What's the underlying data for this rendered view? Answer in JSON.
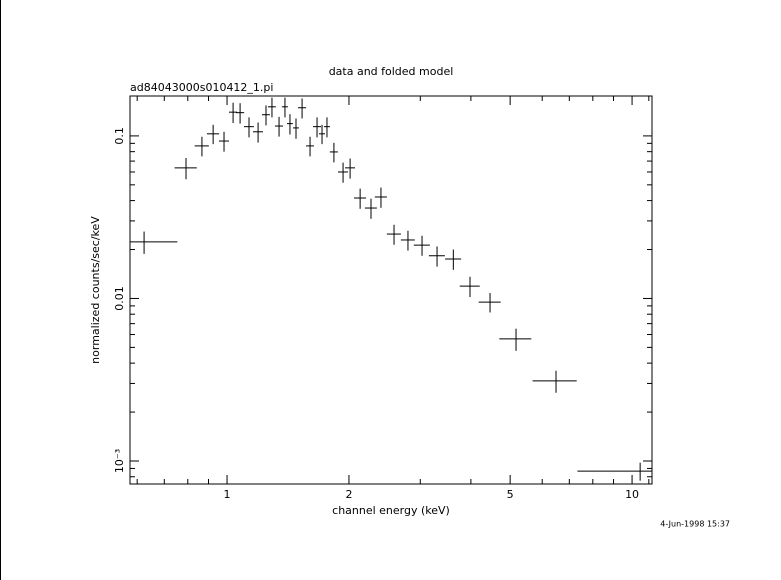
{
  "chart_data": {
    "type": "scatter",
    "title": "data and folded model",
    "subtitle": "ad84043000s010412_1.pi",
    "x_label": "channel energy (keV)",
    "y_label": "normalized counts/sec/keV",
    "footer": "4-Jun-1998 15:37",
    "xscale": "log",
    "yscale": "log",
    "color": "#000000",
    "xlim": [
      0.576,
      11.2
    ],
    "ylim": [
      0.000722,
      0.176
    ],
    "xticks": [
      1,
      2,
      5,
      10
    ],
    "yticks": [
      {
        "value": 0.001,
        "label": "10⁻³"
      },
      0.01,
      0.1
    ],
    "xminorticks": [
      0.6,
      0.7,
      0.8,
      0.9,
      3,
      4,
      6,
      7,
      8,
      9,
      11
    ],
    "yminorticks": [
      0.0008,
      0.0009,
      0.002,
      0.003,
      0.004,
      0.005,
      0.006,
      0.007,
      0.008,
      0.009,
      0.02,
      0.03,
      0.04,
      0.05,
      0.06,
      0.07,
      0.08,
      0.09
    ],
    "x": [
      0.624,
      0.792,
      0.867,
      0.924,
      0.983,
      1.035,
      1.077,
      1.133,
      1.193,
      1.248,
      1.291,
      1.344,
      1.39,
      1.43,
      1.48,
      1.532,
      1.603,
      1.668,
      1.716,
      1.765,
      1.836,
      1.934,
      2.013,
      2.131,
      2.267,
      2.399,
      2.584,
      2.797,
      3.03,
      3.3,
      3.62,
      3.98,
      4.46,
      5.17,
      6.49,
      10.47
    ],
    "xerr": [
      0.13,
      0.05,
      0.035,
      0.032,
      0.028,
      0.024,
      0.025,
      0.032,
      0.034,
      0.028,
      0.029,
      0.031,
      0.024,
      0.024,
      0.025,
      0.035,
      0.036,
      0.038,
      0.029,
      0.03,
      0.042,
      0.055,
      0.057,
      0.073,
      0.077,
      0.082,
      0.103,
      0.111,
      0.138,
      0.15,
      0.165,
      0.226,
      0.279,
      0.47,
      0.81,
      3.14
    ],
    "values": [
      0.0223,
      0.0636,
      0.0868,
      0.103,
      0.093,
      0.14,
      0.139,
      0.114,
      0.106,
      0.135,
      0.151,
      0.115,
      0.151,
      0.119,
      0.112,
      0.149,
      0.0868,
      0.114,
      0.103,
      0.114,
      0.0797,
      0.06,
      0.0636,
      0.0415,
      0.036,
      0.0421,
      0.0249,
      0.0229,
      0.0213,
      0.0183,
      0.0175,
      0.0119,
      0.0095,
      0.00564,
      0.00311,
      0.000867
    ],
    "yerr": [
      0.0035,
      0.0095,
      0.012,
      0.014,
      0.013,
      0.02,
      0.02,
      0.016,
      0.015,
      0.019,
      0.021,
      0.016,
      0.021,
      0.017,
      0.016,
      0.021,
      0.012,
      0.016,
      0.014,
      0.016,
      0.011,
      0.0085,
      0.009,
      0.0059,
      0.0051,
      0.006,
      0.0035,
      0.0032,
      0.003,
      0.0026,
      0.0025,
      0.0017,
      0.0013,
      0.00088,
      0.00048,
      0.00011
    ]
  }
}
